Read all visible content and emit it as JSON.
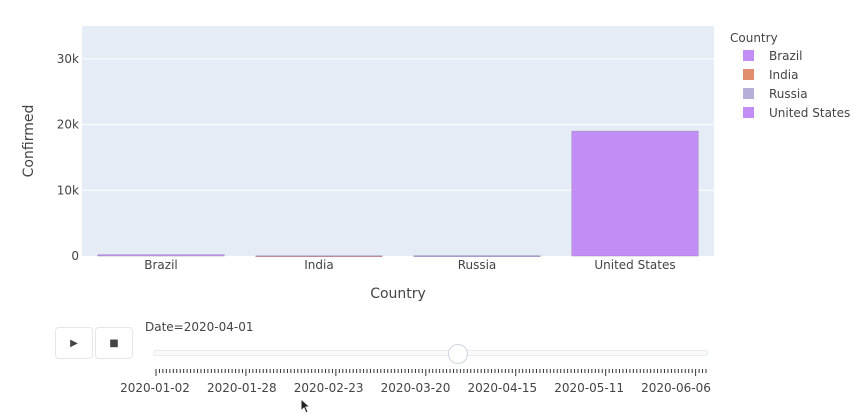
{
  "chart_data": {
    "type": "bar",
    "categories": [
      "Brazil",
      "India",
      "Russia",
      "United States"
    ],
    "values": [
      200,
      30,
      40,
      19000
    ],
    "series_colors": [
      "#c28ef5",
      "#e08e6d",
      "#b6b0d8",
      "#c28ef5"
    ],
    "xlabel": "Country",
    "ylabel": "Confirmed",
    "ylim": [
      0,
      35000
    ],
    "yticks": [
      0,
      10000,
      20000,
      30000
    ],
    "ytick_labels": [
      "0",
      "10k",
      "20k",
      "30k"
    ],
    "grid": true,
    "plot_background": "#e5ecf6",
    "legend": {
      "title": "Country",
      "placement": "right",
      "items": [
        {
          "label": "Brazil",
          "color": "#c28ef5"
        },
        {
          "label": "India",
          "color": "#e08e6d"
        },
        {
          "label": "Russia",
          "color": "#b6b0d8"
        },
        {
          "label": "United States",
          "color": "#c28ef5"
        }
      ]
    }
  },
  "animation": {
    "play_icon": "play-icon",
    "stop_icon": "stop-icon",
    "current_label": "Date=2020-04-01",
    "slider_position": 0.55,
    "tick_labels": [
      "2020-01-02",
      "2020-01-28",
      "2020-02-23",
      "2020-03-20",
      "2020-04-15",
      "2020-05-11",
      "2020-06-06"
    ]
  }
}
